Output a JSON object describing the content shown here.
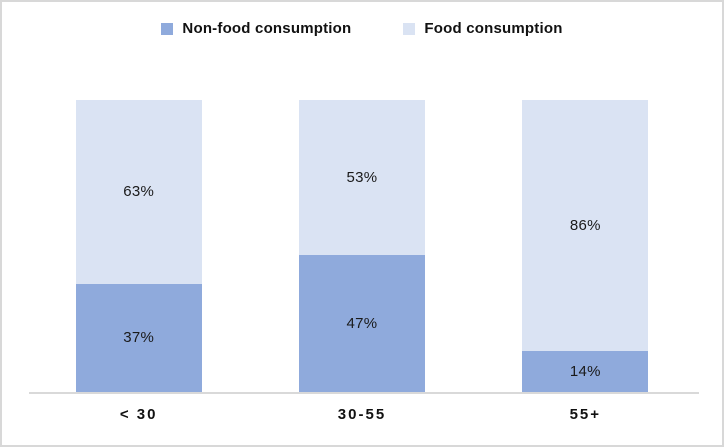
{
  "chart_data": {
    "type": "bar",
    "stacked": true,
    "orientation": "vertical",
    "categories": [
      "< 30",
      "30-55",
      "55+"
    ],
    "series": [
      {
        "name": "Non-food consumption",
        "color": "#8faadc",
        "values": [
          37,
          47,
          14
        ]
      },
      {
        "name": "Food consumption",
        "color": "#dae3f3",
        "values": [
          63,
          53,
          86
        ]
      }
    ],
    "data_labels": {
      "nonfood": [
        "37%",
        "47%",
        "14%"
      ],
      "food": [
        "63%",
        "53%",
        "86%"
      ]
    },
    "unit": "percent",
    "ylim": [
      0,
      100
    ],
    "grid": false,
    "legend_position": "top",
    "title": "",
    "xlabel": "",
    "ylabel": ""
  },
  "colors": {
    "nonfood": "#8faadc",
    "food": "#dae3f3",
    "axis_line": "#d9d9d9",
    "frame_border": "#d8d8d8",
    "label_text": "#1a1a1a"
  }
}
